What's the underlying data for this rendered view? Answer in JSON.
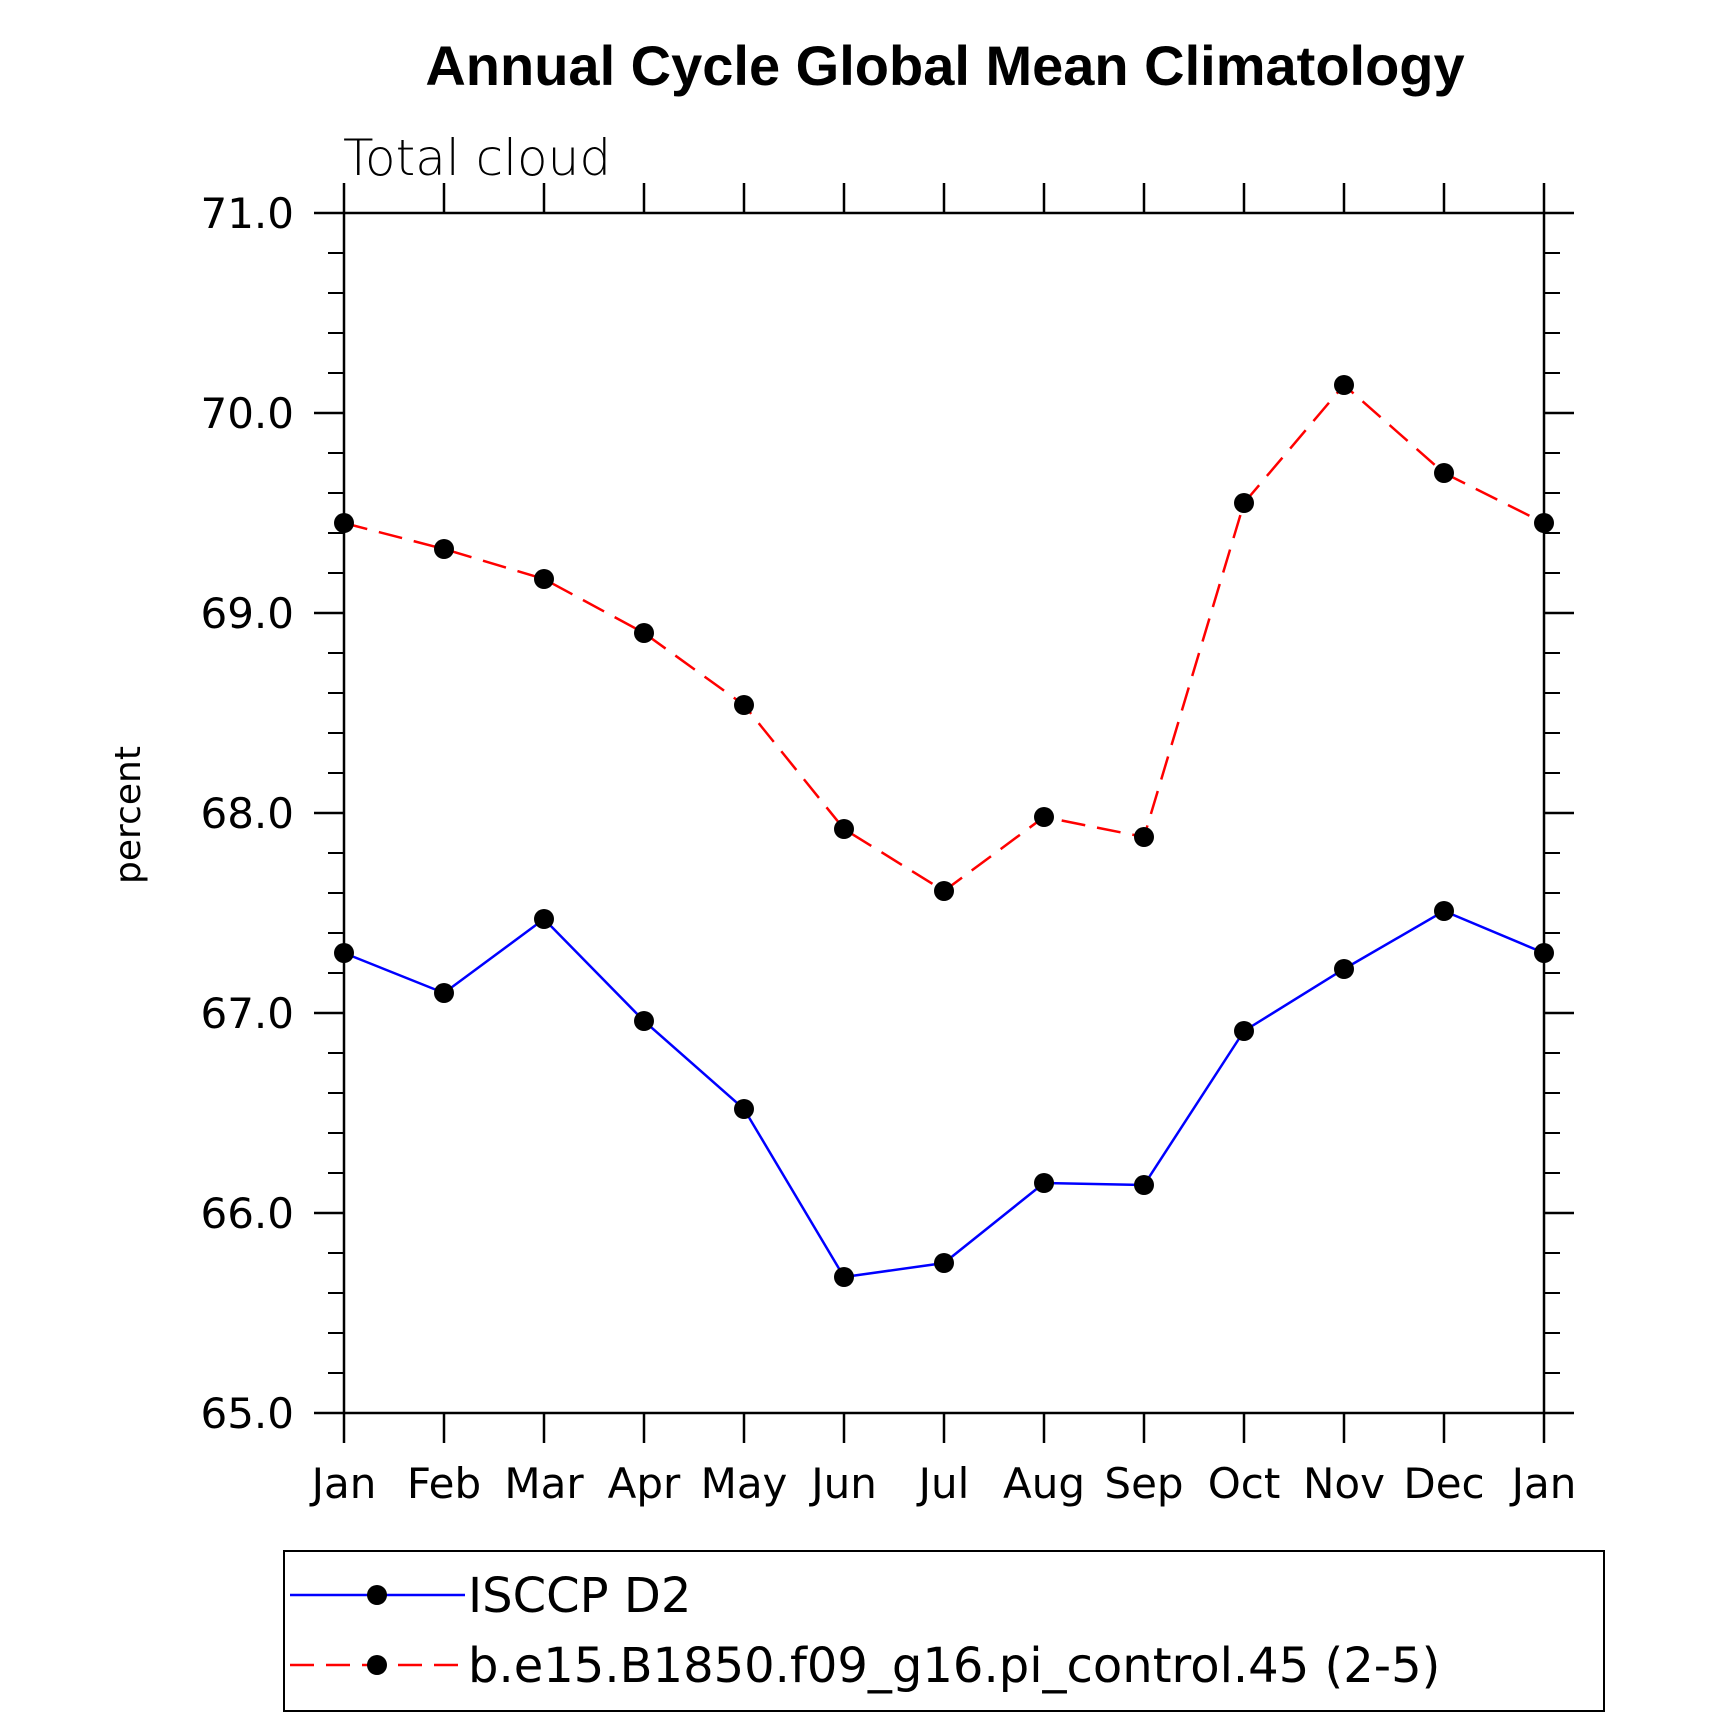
{
  "chart_data": {
    "type": "line",
    "title": "Annual Cycle Global Mean Climatology",
    "subtitle": "Total cloud",
    "ylabel": "percent",
    "xlabel": "",
    "categories": [
      "Jan",
      "Feb",
      "Mar",
      "Apr",
      "May",
      "Jun",
      "Jul",
      "Aug",
      "Sep",
      "Oct",
      "Nov",
      "Dec",
      "Jan"
    ],
    "ylim": [
      65.0,
      71.0
    ],
    "yticks": [
      "65.0",
      "66.0",
      "67.0",
      "68.0",
      "69.0",
      "70.0",
      "71.0"
    ],
    "grid": false,
    "legend_position": "bottom",
    "series": [
      {
        "name": "ISCCP D2",
        "color": "#0000ff",
        "dash": "solid",
        "marker": "circle",
        "values": [
          67.3,
          67.1,
          67.47,
          66.96,
          66.52,
          65.68,
          65.75,
          66.15,
          66.14,
          66.91,
          67.22,
          67.51,
          67.3
        ]
      },
      {
        "name": "b.e15.B1850.f09_g16.pi_control.45 (2-5)",
        "color": "#ff0000",
        "dash": "dashed",
        "marker": "circle",
        "values": [
          69.45,
          69.32,
          69.17,
          68.9,
          68.54,
          67.92,
          67.61,
          67.98,
          67.88,
          69.55,
          70.14,
          69.7,
          69.45
        ]
      }
    ]
  }
}
